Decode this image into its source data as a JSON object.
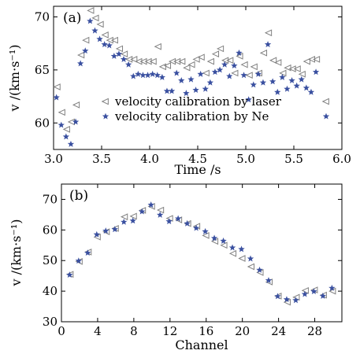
{
  "chart_data": [
    {
      "type": "scatter",
      "panel_label": "(a)",
      "xlabel": "Time /s",
      "ylabel": "v /(km·s⁻¹)",
      "xlim": [
        3.0,
        6.0
      ],
      "ylim": [
        57.5,
        71.0
      ],
      "xticks": [
        3.0,
        3.5,
        4.0,
        4.5,
        5.0,
        5.5,
        6.0
      ],
      "xtick_labels": [
        "3.0",
        "3.5",
        "4.0",
        "4.5",
        "5.0",
        "5.5",
        "6.0"
      ],
      "yticks": [
        60,
        65,
        70
      ],
      "ytick_labels": [
        "60",
        "65",
        "70"
      ],
      "legend_position": "lower-right",
      "series": [
        {
          "name": "velocity calibration by laser",
          "marker": "left-triangle-open",
          "color": "#808080",
          "x": [
            3.04,
            3.09,
            3.14,
            3.19,
            3.24,
            3.29,
            3.34,
            3.39,
            3.44,
            3.49,
            3.54,
            3.59,
            3.64,
            3.69,
            3.74,
            3.79,
            3.84,
            3.89,
            3.94,
            3.99,
            4.04,
            4.09,
            4.14,
            4.19,
            4.24,
            4.29,
            4.34,
            4.39,
            4.44,
            4.49,
            4.54,
            4.59,
            4.64,
            4.69,
            4.74,
            4.79,
            4.84,
            4.89,
            4.94,
            4.99,
            5.04,
            5.09,
            5.14,
            5.19,
            5.24,
            5.29,
            5.34,
            5.39,
            5.44,
            5.49,
            5.54,
            5.59,
            5.64,
            5.69,
            5.74
          ],
          "y": [
            63.4,
            61.0,
            59.4,
            60.1,
            61.7,
            66.4,
            67.8,
            70.6,
            69.9,
            69.3,
            68.3,
            67.8,
            67.8,
            67.0,
            66.5,
            66.0,
            66.0,
            65.8,
            65.8,
            65.8,
            65.8,
            67.2,
            65.3,
            65.4,
            65.8,
            65.8,
            65.8,
            65.2,
            65.5,
            66.0,
            66.2,
            64.7,
            65.8,
            66.5,
            67.0,
            65.9,
            65.9,
            64.7,
            66.3,
            65.5,
            64.5,
            65.3,
            64.7,
            66.6,
            68.5,
            65.9,
            65.7,
            64.7,
            65.2,
            65.1,
            65.1,
            64.6,
            65.8,
            66.0,
            66.0
          ]
        },
        {
          "name": "velocity calibration by Ne",
          "marker": "star",
          "color": "#3a50a0",
          "x": [
            3.03,
            3.08,
            3.13,
            3.18,
            3.23,
            3.28,
            3.33,
            3.38,
            3.43,
            3.48,
            3.53,
            3.58,
            3.63,
            3.68,
            3.73,
            3.78,
            3.83,
            3.88,
            3.93,
            3.98,
            4.03,
            4.08,
            4.13,
            4.18,
            4.23,
            4.28,
            4.33,
            4.38,
            4.43,
            4.48,
            4.53,
            4.58,
            4.63,
            4.68,
            4.73,
            4.78,
            4.83,
            4.88,
            4.93,
            4.98,
            5.03,
            5.08,
            5.13,
            5.18,
            5.23,
            5.28,
            5.33,
            5.38,
            5.43,
            5.48,
            5.53,
            5.58,
            5.63,
            5.68,
            5.73
          ],
          "y": [
            62.4,
            59.8,
            58.7,
            58.0,
            60.1,
            65.6,
            66.8,
            69.6,
            68.7,
            67.9,
            67.4,
            67.3,
            66.3,
            66.5,
            66.0,
            65.5,
            64.4,
            64.6,
            64.5,
            64.5,
            64.6,
            64.5,
            64.3,
            63.0,
            63.0,
            64.7,
            64.0,
            62.8,
            64.1,
            63.1,
            64.6,
            63.2,
            63.8,
            64.8,
            65.0,
            65.5,
            64.4,
            65.4,
            66.6,
            64.5,
            62.2,
            63.6,
            64.6,
            63.8,
            67.4,
            63.9,
            62.9,
            64.3,
            63.2,
            64.0,
            63.5,
            64.1,
            63.3,
            62.9,
            64.8
          ]
        }
      ]
    },
    {
      "type": "scatter",
      "panel_label": "(b)",
      "xlabel": "Channel",
      "ylabel": "v /(km·s⁻¹)",
      "xlim": [
        0,
        31
      ],
      "ylim": [
        30,
        75
      ],
      "xticks": [
        0,
        4,
        8,
        12,
        16,
        20,
        24,
        28
      ],
      "xtick_labels": [
        "0",
        "4",
        "8",
        "12",
        "16",
        "20",
        "24",
        "28"
      ],
      "yticks": [
        30,
        40,
        50,
        60,
        70
      ],
      "ytick_labels": [
        "30",
        "40",
        "50",
        "60",
        "70"
      ],
      "series": [
        {
          "name": "velocity calibration by laser",
          "marker": "left-triangle-open",
          "color": "#808080",
          "x": [
            1,
            2,
            3,
            4,
            5,
            6,
            7,
            8,
            9,
            10,
            11,
            12,
            13,
            14,
            15,
            16,
            17,
            18,
            19,
            20,
            21,
            22,
            23,
            24,
            25,
            26,
            27,
            28,
            29,
            30
          ],
          "y": [
            45.5,
            49.7,
            52.8,
            57.7,
            59.4,
            60.5,
            64.3,
            64.5,
            66.4,
            67.7,
            66.5,
            63.8,
            63.3,
            62.1,
            61.2,
            58.2,
            56.3,
            55.0,
            52.3,
            50.7,
            48.0,
            46.1,
            43.0,
            38.4,
            36.4,
            38.0,
            40.2,
            40.4,
            38.7,
            40.0
          ]
        },
        {
          "name": "velocity calibration by Ne",
          "marker": "star",
          "color": "#3a50a0",
          "x": [
            0.9,
            1.9,
            2.9,
            3.9,
            4.9,
            5.9,
            6.9,
            7.9,
            8.9,
            9.9,
            10.9,
            11.9,
            12.9,
            13.9,
            14.9,
            15.9,
            16.9,
            17.9,
            18.9,
            19.9,
            20.9,
            21.9,
            22.9,
            23.9,
            24.9,
            25.9,
            26.9,
            27.9,
            28.9,
            29.9
          ],
          "y": [
            45.3,
            49.9,
            52.5,
            58.5,
            59.7,
            60.2,
            62.6,
            63.0,
            66.0,
            68.2,
            64.9,
            62.8,
            63.7,
            62.1,
            60.6,
            59.5,
            57.3,
            56.4,
            54.2,
            53.7,
            50.6,
            46.9,
            43.5,
            38.3,
            37.3,
            37.0,
            39.0,
            39.9,
            38.4,
            41.0
          ]
        }
      ]
    }
  ]
}
